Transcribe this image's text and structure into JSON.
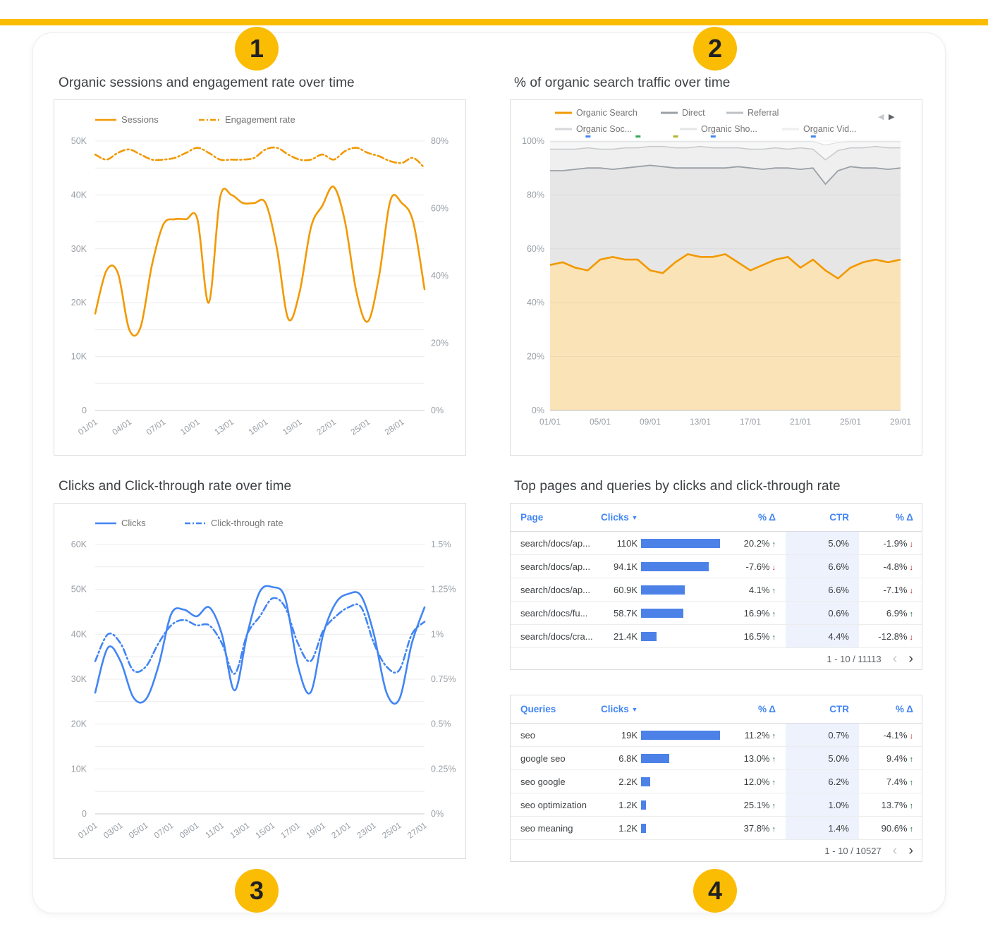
{
  "colors": {
    "accent_yellow": "#FBBC04",
    "orange": "#F29900",
    "blue": "#4285F4",
    "bar_blue": "#4C82E8",
    "delta_up_green": "#137333",
    "delta_down_red": "#C5221F"
  },
  "badges": [
    "1",
    "2",
    "3",
    "4"
  ],
  "panels": {
    "sessions": {
      "title": "Organic sessions and engagement rate over time"
    },
    "traffic": {
      "title": "% of organic search traffic over time"
    },
    "clicks": {
      "title": "Clicks and Click-through rate over time"
    },
    "tables": {
      "title": "Top pages and queries by clicks and click-through rate"
    }
  },
  "chart_data": [
    {
      "id": "sessions",
      "type": "line",
      "title": "Organic sessions and engagement rate over time",
      "x_tick_labels": [
        "01/01",
        "04/01",
        "07/01",
        "10/01",
        "13/01",
        "16/01",
        "19/01",
        "22/01",
        "25/01",
        "28/01"
      ],
      "x_tick_step": 3,
      "n_points": 30,
      "left_axis": {
        "min": 0,
        "max": 50,
        "unit": "K sessions",
        "tick_labels": [
          "0",
          "10K",
          "20K",
          "30K",
          "40K",
          "50K"
        ],
        "grid_divisions": 10
      },
      "right_axis": {
        "min": 0,
        "max": 80,
        "unit": "%",
        "tick_labels": [
          "0%",
          "20%",
          "40%",
          "60%",
          "80%"
        ]
      },
      "series": [
        {
          "name": "Sessions",
          "axis": "left",
          "style": "solid",
          "color": "#F29900",
          "values": [
            18,
            26,
            25.5,
            15,
            15.5,
            27,
            34.5,
            35.5,
            35.5,
            35.5,
            20,
            39.5,
            40,
            38.5,
            38.5,
            38.5,
            30,
            17,
            22,
            34,
            38,
            41.5,
            35,
            22,
            16.5,
            25,
            39,
            38.5,
            35,
            22.5
          ]
        },
        {
          "name": "Engagement rate",
          "axis": "right",
          "style": "dashdot",
          "color": "#F29900",
          "values": [
            76,
            74.5,
            76.5,
            77.5,
            76,
            74.5,
            74.5,
            75,
            76.5,
            78,
            76.5,
            74.5,
            74.5,
            74.5,
            75,
            77.5,
            78,
            76,
            74.5,
            74.5,
            76,
            74.5,
            77,
            78,
            76.5,
            75.5,
            74,
            73.5,
            75,
            72
          ]
        }
      ]
    },
    {
      "id": "traffic",
      "type": "stacked_area",
      "title": "% of organic search traffic over time",
      "x_tick_labels": [
        "01/01",
        "05/01",
        "09/01",
        "13/01",
        "17/01",
        "21/01",
        "25/01",
        "29/01"
      ],
      "x_tick_step": 4,
      "n_points": 29,
      "y_axis": {
        "min": 0,
        "max": 100,
        "tick_labels": [
          "0%",
          "20%",
          "40%",
          "60%",
          "80%",
          "100%"
        ],
        "grid_divisions": 5
      },
      "values_are_cumulative": true,
      "series": [
        {
          "name": "Organic Search",
          "color": "#F29900",
          "fill": "rgba(242,153,0,0.28)",
          "stroke_width": 2.6,
          "values": [
            54,
            55,
            53,
            52,
            56,
            57,
            56,
            56,
            52,
            51,
            55,
            58,
            57,
            57,
            58,
            55,
            52,
            54,
            56,
            57,
            53,
            56,
            52,
            49,
            53,
            55,
            56,
            55,
            56
          ]
        },
        {
          "name": "Direct",
          "color": "#9AA0A6",
          "fill": "#E6E6E6",
          "stroke_width": 1.8,
          "values": [
            89,
            89,
            89.5,
            90,
            90,
            89.5,
            90,
            90.5,
            91,
            90.5,
            90,
            90,
            90,
            90,
            90,
            90.5,
            90,
            89.5,
            90,
            90,
            89.5,
            90,
            84,
            89,
            90.5,
            90,
            90,
            89.5,
            90
          ]
        },
        {
          "name": "Referral",
          "color": "#C6C9CC",
          "fill": "#EFEFEF",
          "stroke_width": 1.5,
          "values": [
            97,
            97,
            97,
            97.5,
            97,
            97,
            97.5,
            97.5,
            98,
            98,
            97.5,
            97.5,
            98,
            97.5,
            97.5,
            97.5,
            97,
            97,
            97.5,
            97,
            97.5,
            97,
            93,
            96.5,
            97.5,
            97.5,
            98,
            97.5,
            97.5
          ]
        },
        {
          "name": "Organic Social / Shopping / Video (rest)",
          "color": "#DDDFE2",
          "fill": "#F7F7F7",
          "stroke_width": 1.2,
          "values": [
            99.8,
            99.8,
            99.8,
            99.8,
            99.8,
            99.8,
            99.8,
            99.8,
            99.8,
            99.8,
            99.8,
            99.8,
            99.8,
            99.8,
            99.8,
            99.8,
            99.8,
            99.8,
            99.8,
            99.8,
            99.8,
            99.8,
            98.5,
            99.5,
            99.8,
            99.8,
            99.8,
            99.8,
            99.8
          ]
        }
      ],
      "legend": [
        {
          "label": "Organic Search",
          "color": "#F29900"
        },
        {
          "label": "Direct",
          "color": "#9AA0A6"
        },
        {
          "label": "Referral",
          "color": "#BDC1C6"
        },
        {
          "label": "Organic Soc...",
          "color": "#D5D7DA"
        },
        {
          "label": "Organic Sho...",
          "color": "#E3E5E7"
        },
        {
          "label": "Organic Vid...",
          "color": "#EDEEEF"
        }
      ],
      "markers": [
        {
          "i": 3,
          "color": "#4285F4"
        },
        {
          "i": 7,
          "color": "#34A853"
        },
        {
          "i": 10,
          "color": "#AFB42B"
        },
        {
          "i": 13,
          "color": "#4285F4"
        },
        {
          "i": 21,
          "color": "#4285F4"
        }
      ]
    },
    {
      "id": "clicks",
      "type": "line",
      "title": "Clicks and Click-through rate over time",
      "x_tick_labels": [
        "01/01",
        "03/01",
        "05/01",
        "07/01",
        "09/01",
        "11/01",
        "13/01",
        "15/01",
        "17/01",
        "19/01",
        "21/01",
        "23/01",
        "25/01",
        "27/01"
      ],
      "x_tick_step": 2,
      "n_points": 27,
      "left_axis": {
        "min": 0,
        "max": 60,
        "unit": "K clicks",
        "tick_labels": [
          "0",
          "10K",
          "20K",
          "30K",
          "40K",
          "50K",
          "60K"
        ],
        "grid_divisions": 12
      },
      "right_axis": {
        "min": 0,
        "max": 1.5,
        "unit": "%",
        "tick_labels": [
          "0%",
          "0.25%",
          "0.5%",
          "0.75%",
          "1%",
          "1.25%",
          "1.5%"
        ]
      },
      "series": [
        {
          "name": "Clicks",
          "axis": "left",
          "style": "solid",
          "color": "#4285F4",
          "values": [
            27,
            37,
            34,
            26,
            25.5,
            33,
            44.5,
            45.5,
            44,
            46,
            40,
            27.5,
            40,
            49.5,
            50.5,
            48,
            33,
            27,
            40,
            47,
            49,
            48.5,
            40,
            27,
            25.5,
            38,
            46
          ]
        },
        {
          "name": "Click-through rate",
          "axis": "right",
          "style": "dashdot",
          "color": "#4285F4",
          "values": [
            0.85,
            1.0,
            0.95,
            0.8,
            0.82,
            0.95,
            1.05,
            1.08,
            1.05,
            1.05,
            0.95,
            0.78,
            1.0,
            1.1,
            1.2,
            1.15,
            0.95,
            0.85,
            1.02,
            1.1,
            1.15,
            1.15,
            0.95,
            0.82,
            0.8,
            1.0,
            1.07
          ]
        }
      ]
    },
    {
      "id": "pages",
      "type": "table",
      "header": {
        "label": "Page",
        "clicks": "Clicks",
        "sort_icon": "▼",
        "delta": "% Δ",
        "ctr": "CTR",
        "ctr_delta": "% Δ"
      },
      "rows": [
        {
          "label": "search/docs/ap...",
          "clicks": "110K",
          "clicks_value": 110,
          "delta": "20.2%",
          "delta_dir": "up",
          "ctr": "5.0%",
          "ctr_delta": "-1.9%",
          "ctr_delta_dir": "down"
        },
        {
          "label": "search/docs/ap...",
          "clicks": "94.1K",
          "clicks_value": 94.1,
          "delta": "-7.6%",
          "delta_dir": "down",
          "ctr": "6.6%",
          "ctr_delta": "-4.8%",
          "ctr_delta_dir": "down"
        },
        {
          "label": "search/docs/ap...",
          "clicks": "60.9K",
          "clicks_value": 60.9,
          "delta": "4.1%",
          "delta_dir": "up",
          "ctr": "6.6%",
          "ctr_delta": "-7.1%",
          "ctr_delta_dir": "down"
        },
        {
          "label": "search/docs/fu...",
          "clicks": "58.7K",
          "clicks_value": 58.7,
          "delta": "16.9%",
          "delta_dir": "up",
          "ctr": "0.6%",
          "ctr_delta": "6.9%",
          "ctr_delta_dir": "up"
        },
        {
          "label": "search/docs/cra...",
          "clicks": "21.4K",
          "clicks_value": 21.4,
          "delta": "16.5%",
          "delta_dir": "up",
          "ctr": "4.4%",
          "ctr_delta": "-12.8%",
          "ctr_delta_dir": "down"
        }
      ],
      "pagination": {
        "range": "1 - 10 / 11113",
        "prev_icon": "‹",
        "next_icon": "›"
      }
    },
    {
      "id": "queries",
      "type": "table",
      "header": {
        "label": "Queries",
        "clicks": "Clicks",
        "sort_icon": "▼",
        "delta": "% Δ",
        "ctr": "CTR",
        "ctr_delta": "% Δ"
      },
      "rows": [
        {
          "label": "seo",
          "clicks": "19K",
          "clicks_value": 19,
          "delta": "11.2%",
          "delta_dir": "up",
          "ctr": "0.7%",
          "ctr_delta": "-4.1%",
          "ctr_delta_dir": "down"
        },
        {
          "label": "google seo",
          "clicks": "6.8K",
          "clicks_value": 6.8,
          "delta": "13.0%",
          "delta_dir": "up",
          "ctr": "5.0%",
          "ctr_delta": "9.4%",
          "ctr_delta_dir": "up"
        },
        {
          "label": "seo google",
          "clicks": "2.2K",
          "clicks_value": 2.2,
          "delta": "12.0%",
          "delta_dir": "up",
          "ctr": "6.2%",
          "ctr_delta": "7.4%",
          "ctr_delta_dir": "up"
        },
        {
          "label": "seo optimization",
          "clicks": "1.2K",
          "clicks_value": 1.2,
          "delta": "25.1%",
          "delta_dir": "up",
          "ctr": "1.0%",
          "ctr_delta": "13.7%",
          "ctr_delta_dir": "up"
        },
        {
          "label": "seo meaning",
          "clicks": "1.2K",
          "clicks_value": 1.2,
          "delta": "37.8%",
          "delta_dir": "up",
          "ctr": "1.4%",
          "ctr_delta": "90.6%",
          "ctr_delta_dir": "up"
        }
      ],
      "pagination": {
        "range": "1 - 10 / 10527",
        "prev_icon": "‹",
        "next_icon": "›"
      }
    }
  ]
}
